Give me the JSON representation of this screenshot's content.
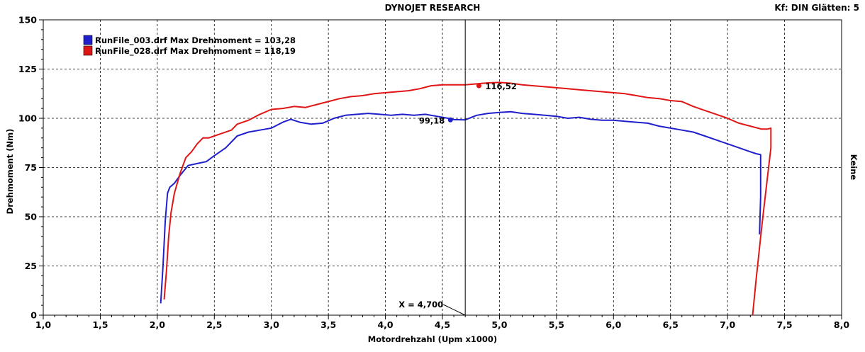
{
  "header": {
    "title": "DYNOJET RESEARCH",
    "right_label": "Kf: DIN  Glätten: 5",
    "right_side_label": "Keine"
  },
  "chart_data": {
    "type": "line",
    "xlabel": "Motordrehzahl (Upm x1000)",
    "ylabel": "Drehmoment (Nm)",
    "xlim": [
      1.0,
      8.0
    ],
    "ylim": [
      0,
      150
    ],
    "x_ticks": [
      "1,0",
      "1,5",
      "2,0",
      "2,5",
      "3,0",
      "3,5",
      "4,0",
      "4,5",
      "5,0",
      "5,5",
      "6,0",
      "6,5",
      "7,0",
      "7,5",
      "8,0"
    ],
    "y_ticks": [
      "0",
      "25",
      "50",
      "75",
      "100",
      "125",
      "150"
    ],
    "grid": true,
    "legend_position": "top-left",
    "cursor": {
      "x": 4.7,
      "label": "X = 4,700"
    },
    "series": [
      {
        "name": "RunFile_003.drf Max Drehmoment = 103,28",
        "color": "#1f1fcc",
        "cursor_value": 99.18,
        "cursor_value_label": "99,18",
        "marker_x": 4.57,
        "points": [
          [
            2.03,
            6
          ],
          [
            2.05,
            25
          ],
          [
            2.07,
            48
          ],
          [
            2.09,
            62
          ],
          [
            2.11,
            65
          ],
          [
            2.15,
            67
          ],
          [
            2.2,
            71
          ],
          [
            2.27,
            76
          ],
          [
            2.35,
            77
          ],
          [
            2.43,
            78
          ],
          [
            2.5,
            81
          ],
          [
            2.6,
            85
          ],
          [
            2.7,
            91
          ],
          [
            2.8,
            93
          ],
          [
            2.9,
            94
          ],
          [
            3.0,
            95
          ],
          [
            3.1,
            98
          ],
          [
            3.17,
            99.5
          ],
          [
            3.25,
            98
          ],
          [
            3.35,
            97
          ],
          [
            3.45,
            97.5
          ],
          [
            3.55,
            100
          ],
          [
            3.65,
            101.5
          ],
          [
            3.75,
            102
          ],
          [
            3.85,
            102.5
          ],
          [
            3.95,
            102
          ],
          [
            4.05,
            101.5
          ],
          [
            4.15,
            102
          ],
          [
            4.25,
            101.5
          ],
          [
            4.35,
            102
          ],
          [
            4.45,
            101
          ],
          [
            4.55,
            100
          ],
          [
            4.6,
            99.3
          ],
          [
            4.7,
            99.2
          ],
          [
            4.8,
            101.5
          ],
          [
            4.9,
            102.5
          ],
          [
            5.0,
            103
          ],
          [
            5.1,
            103.3
          ],
          [
            5.2,
            102.5
          ],
          [
            5.3,
            102
          ],
          [
            5.4,
            101.5
          ],
          [
            5.5,
            101
          ],
          [
            5.6,
            100
          ],
          [
            5.7,
            100.5
          ],
          [
            5.8,
            99.5
          ],
          [
            5.9,
            99
          ],
          [
            6.0,
            99
          ],
          [
            6.1,
            98.5
          ],
          [
            6.2,
            98
          ],
          [
            6.3,
            97.5
          ],
          [
            6.4,
            96
          ],
          [
            6.5,
            95
          ],
          [
            6.6,
            94
          ],
          [
            6.7,
            93
          ],
          [
            6.8,
            91
          ],
          [
            6.9,
            89
          ],
          [
            7.0,
            87
          ],
          [
            7.1,
            85
          ],
          [
            7.2,
            83
          ],
          [
            7.25,
            82
          ],
          [
            7.29,
            81.5
          ],
          [
            7.29,
            60
          ],
          [
            7.28,
            41
          ]
        ]
      },
      {
        "name": "RunFile_028.drf Max Drehmoment = 118,19",
        "color": "#e01616",
        "cursor_value": 116.52,
        "cursor_value_label": "116,52",
        "marker_x": 4.82,
        "points": [
          [
            2.06,
            8
          ],
          [
            2.08,
            22
          ],
          [
            2.1,
            40
          ],
          [
            2.12,
            52
          ],
          [
            2.15,
            62
          ],
          [
            2.2,
            72
          ],
          [
            2.25,
            80
          ],
          [
            2.3,
            83
          ],
          [
            2.35,
            87
          ],
          [
            2.4,
            90
          ],
          [
            2.45,
            90
          ],
          [
            2.5,
            91
          ],
          [
            2.55,
            92
          ],
          [
            2.65,
            94
          ],
          [
            2.7,
            97
          ],
          [
            2.8,
            99
          ],
          [
            2.9,
            102
          ],
          [
            3.0,
            104.5
          ],
          [
            3.1,
            105
          ],
          [
            3.2,
            106
          ],
          [
            3.3,
            105.5
          ],
          [
            3.4,
            107
          ],
          [
            3.5,
            108.5
          ],
          [
            3.6,
            110
          ],
          [
            3.7,
            111
          ],
          [
            3.8,
            111.5
          ],
          [
            3.9,
            112.5
          ],
          [
            4.0,
            113
          ],
          [
            4.1,
            113.5
          ],
          [
            4.2,
            114
          ],
          [
            4.3,
            115
          ],
          [
            4.4,
            116.5
          ],
          [
            4.5,
            117
          ],
          [
            4.6,
            117
          ],
          [
            4.7,
            117
          ],
          [
            4.8,
            117.5
          ],
          [
            4.9,
            118
          ],
          [
            5.0,
            118.2
          ],
          [
            5.1,
            117.8
          ],
          [
            5.2,
            117
          ],
          [
            5.3,
            116.5
          ],
          [
            5.4,
            116
          ],
          [
            5.5,
            115.5
          ],
          [
            5.6,
            115
          ],
          [
            5.7,
            114.5
          ],
          [
            5.8,
            114
          ],
          [
            5.9,
            113.5
          ],
          [
            6.0,
            113
          ],
          [
            6.1,
            112.5
          ],
          [
            6.2,
            111.5
          ],
          [
            6.3,
            110.5
          ],
          [
            6.4,
            110
          ],
          [
            6.5,
            109
          ],
          [
            6.6,
            108.5
          ],
          [
            6.7,
            106
          ],
          [
            6.8,
            104
          ],
          [
            6.9,
            102
          ],
          [
            7.0,
            100
          ],
          [
            7.1,
            97.5
          ],
          [
            7.2,
            96
          ],
          [
            7.3,
            94.5
          ],
          [
            7.35,
            94.5
          ],
          [
            7.38,
            95
          ],
          [
            7.38,
            85
          ],
          [
            7.35,
            70
          ],
          [
            7.3,
            45
          ],
          [
            7.25,
            18
          ],
          [
            7.22,
            0
          ]
        ]
      }
    ]
  }
}
